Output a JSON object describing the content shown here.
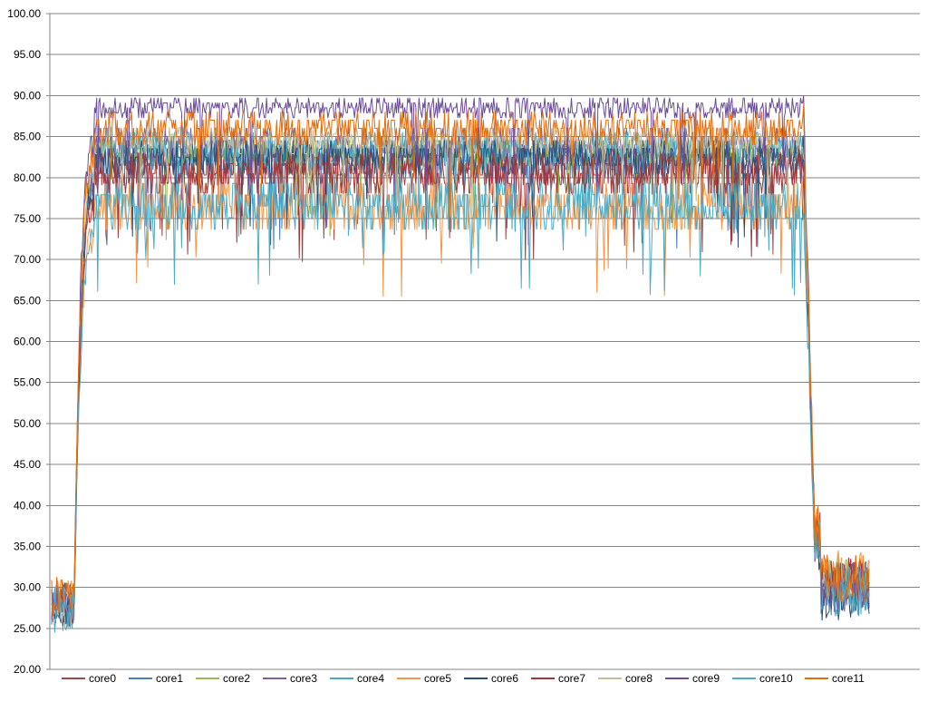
{
  "chart_data": {
    "type": "line",
    "title": "",
    "xlabel": "",
    "ylabel": "",
    "ylim": [
      20,
      100
    ],
    "y_ticks": [
      "20.00",
      "25.00",
      "30.00",
      "35.00",
      "40.00",
      "45.00",
      "50.00",
      "55.00",
      "60.00",
      "65.00",
      "70.00",
      "75.00",
      "80.00",
      "85.00",
      "90.00",
      "95.00",
      "100.00"
    ],
    "grid": "horizontal",
    "legend_position": "bottom",
    "x_count": 800,
    "x": [
      0,
      799
    ],
    "series": [
      {
        "name": "core0",
        "color": "#A0484A",
        "profile": {
          "idle_start": 28.0,
          "load": 81.5,
          "amp": 3.0,
          "idle_end": 30.5
        }
      },
      {
        "name": "core1",
        "color": "#4A7EBB",
        "profile": {
          "idle_start": 27.5,
          "load": 82.0,
          "amp": 2.5,
          "idle_end": 29.5
        }
      },
      {
        "name": "core2",
        "color": "#98B954",
        "profile": {
          "idle_start": 28.5,
          "load": 83.0,
          "amp": 2.0,
          "idle_end": 31.0
        }
      },
      {
        "name": "core3",
        "color": "#7D60A0",
        "profile": {
          "idle_start": 28.0,
          "load": 84.0,
          "amp": 2.5,
          "idle_end": 30.0
        }
      },
      {
        "name": "core4",
        "color": "#46AAC5",
        "profile": {
          "idle_start": 27.0,
          "load": 83.5,
          "amp": 2.5,
          "idle_end": 29.5
        }
      },
      {
        "name": "core5",
        "color": "#F79646",
        "profile": {
          "idle_start": 29.0,
          "load": 76.5,
          "amp": 3.5,
          "idle_end": 31.5
        }
      },
      {
        "name": "core6",
        "color": "#2C4D75",
        "profile": {
          "idle_start": 27.0,
          "load": 82.5,
          "amp": 2.5,
          "idle_end": 29.0
        }
      },
      {
        "name": "core7",
        "color": "#A0373A",
        "profile": {
          "idle_start": 28.5,
          "load": 80.5,
          "amp": 3.0,
          "idle_end": 31.0
        }
      },
      {
        "name": "core8",
        "color": "#C4BD97",
        "profile": {
          "idle_start": 28.0,
          "load": 84.5,
          "amp": 2.0,
          "idle_end": 30.5
        }
      },
      {
        "name": "core9",
        "color": "#6B4C9A",
        "profile": {
          "idle_start": 28.0,
          "load": 88.5,
          "amp": 1.5,
          "idle_end": 30.0
        }
      },
      {
        "name": "core10",
        "color": "#4BACC6",
        "profile": {
          "idle_start": 27.5,
          "load": 76.5,
          "amp": 3.5,
          "idle_end": 29.5
        }
      },
      {
        "name": "core11",
        "color": "#E46C0A",
        "profile": {
          "idle_start": 29.0,
          "load": 86.0,
          "amp": 2.5,
          "idle_end": 31.0
        }
      }
    ]
  }
}
